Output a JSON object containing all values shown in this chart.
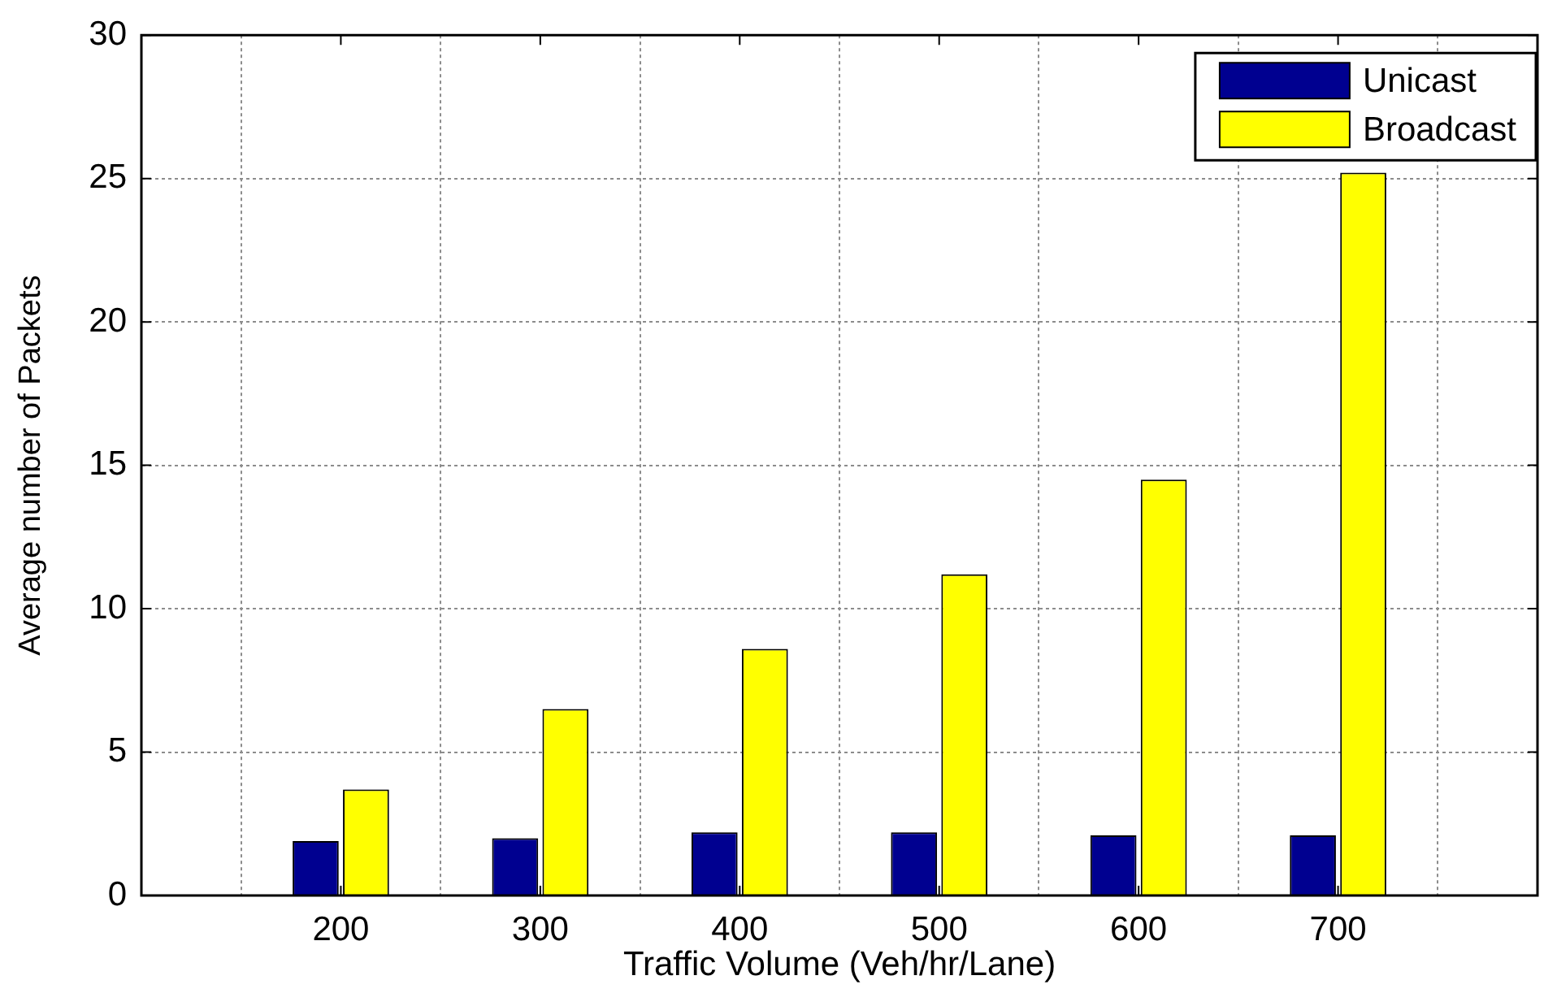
{
  "chart_data": {
    "type": "bar",
    "xlabel": "Traffic Volume (Veh/hr/Lane)",
    "ylabel": "Average number of Packets",
    "x": [
      200,
      300,
      400,
      500,
      600,
      700
    ],
    "xlim": [
      100,
      800
    ],
    "xticks": [
      200,
      300,
      400,
      500,
      600,
      700
    ],
    "ylim": [
      0,
      30
    ],
    "yticks": [
      0,
      5,
      10,
      15,
      20,
      25,
      30
    ],
    "series": [
      {
        "name": "Unicast",
        "color": "#000090",
        "values": [
          1.9,
          2.0,
          2.2,
          2.2,
          2.1,
          2.1
        ]
      },
      {
        "name": "Broadcast",
        "color": "#ffff00",
        "values": [
          3.7,
          6.5,
          8.6,
          11.2,
          14.5,
          25.2
        ]
      }
    ],
    "grid": true,
    "legend": "top right"
  }
}
